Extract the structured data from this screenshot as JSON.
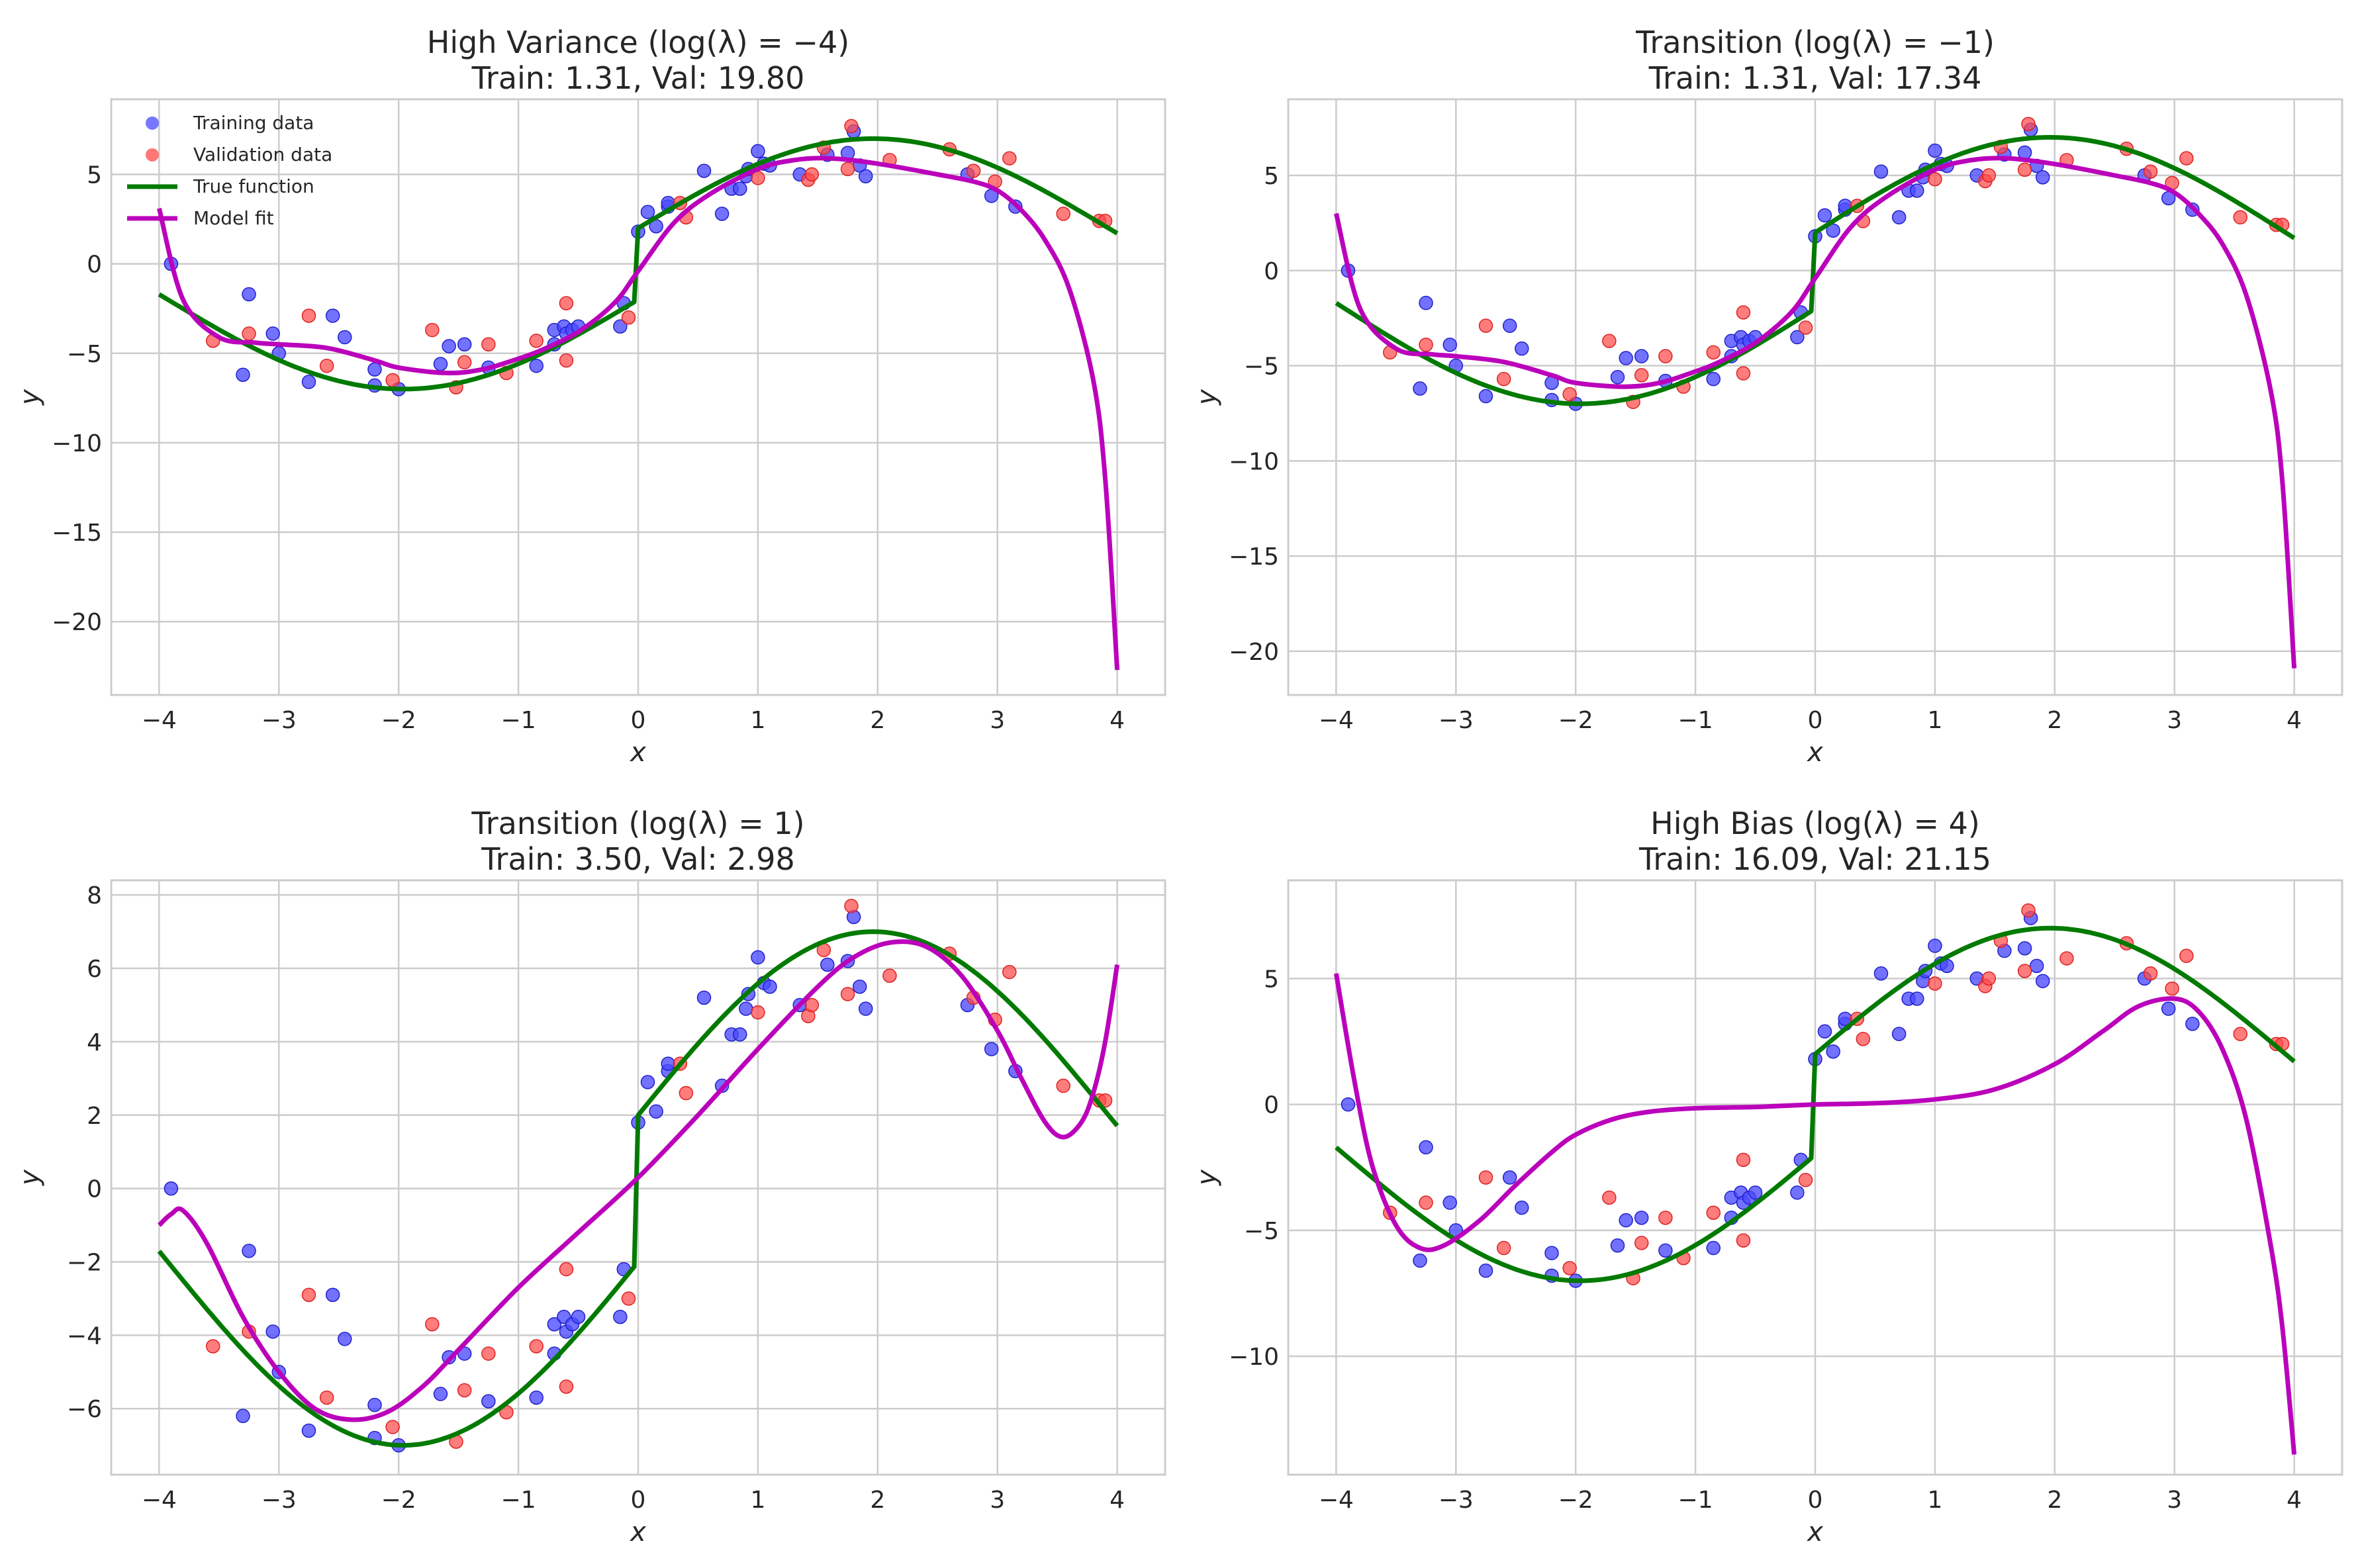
{
  "colors": {
    "training": "#4a4aff",
    "validation": "#ff4a4a",
    "true_fn": "#007a00",
    "model_fit": "#bb00bb",
    "grid": "#cccccc",
    "frame": "#cccccc"
  },
  "legend": {
    "placement": "upper-left of first panel",
    "items": [
      {
        "label": "Training data",
        "kind": "scatter",
        "color_key": "training"
      },
      {
        "label": "Validation data",
        "kind": "scatter",
        "color_key": "validation"
      },
      {
        "label": "True function",
        "kind": "line",
        "color_key": "true_fn"
      },
      {
        "label": "Model fit",
        "kind": "line",
        "color_key": "model_fit"
      }
    ]
  },
  "training_points": [
    [
      -3.9,
      0.0
    ],
    [
      -3.3,
      -6.2
    ],
    [
      -3.25,
      -1.7
    ],
    [
      -3.05,
      -3.9
    ],
    [
      -3.0,
      -5.0
    ],
    [
      -2.75,
      -6.6
    ],
    [
      -2.55,
      -2.9
    ],
    [
      -2.45,
      -4.1
    ],
    [
      -2.2,
      -5.9
    ],
    [
      -2.2,
      -6.8
    ],
    [
      -2.0,
      -7.0
    ],
    [
      -1.65,
      -5.6
    ],
    [
      -1.58,
      -4.6
    ],
    [
      -1.45,
      -4.5
    ],
    [
      -1.25,
      -5.8
    ],
    [
      -0.85,
      -5.7
    ],
    [
      -0.7,
      -4.5
    ],
    [
      -0.7,
      -3.7
    ],
    [
      -0.62,
      -3.5
    ],
    [
      -0.6,
      -3.9
    ],
    [
      -0.55,
      -3.7
    ],
    [
      -0.5,
      -3.5
    ],
    [
      -0.15,
      -3.5
    ],
    [
      -0.12,
      -2.2
    ],
    [
      0.0,
      1.8
    ],
    [
      0.08,
      2.9
    ],
    [
      0.15,
      2.1
    ],
    [
      0.25,
      3.2
    ],
    [
      0.25,
      3.4
    ],
    [
      0.55,
      5.2
    ],
    [
      0.7,
      2.8
    ],
    [
      0.78,
      4.2
    ],
    [
      0.85,
      4.2
    ],
    [
      0.9,
      4.9
    ],
    [
      0.92,
      5.3
    ],
    [
      1.0,
      6.3
    ],
    [
      1.05,
      5.6
    ],
    [
      1.1,
      5.5
    ],
    [
      1.35,
      5.0
    ],
    [
      1.58,
      6.1
    ],
    [
      1.75,
      6.2
    ],
    [
      1.8,
      7.4
    ],
    [
      1.85,
      5.5
    ],
    [
      1.9,
      4.9
    ],
    [
      2.75,
      5.0
    ],
    [
      2.95,
      3.8
    ],
    [
      3.15,
      3.2
    ]
  ],
  "validation_points": [
    [
      -3.55,
      -4.3
    ],
    [
      -3.25,
      -3.9
    ],
    [
      -2.75,
      -2.9
    ],
    [
      -2.6,
      -5.7
    ],
    [
      -2.05,
      -6.5
    ],
    [
      -1.72,
      -3.7
    ],
    [
      -1.52,
      -6.9
    ],
    [
      -1.45,
      -5.5
    ],
    [
      -1.25,
      -4.5
    ],
    [
      -1.1,
      -6.1
    ],
    [
      -0.85,
      -4.3
    ],
    [
      -0.6,
      -5.4
    ],
    [
      -0.6,
      -2.2
    ],
    [
      -0.08,
      -3.0
    ],
    [
      0.35,
      3.4
    ],
    [
      0.4,
      2.6
    ],
    [
      1.0,
      4.8
    ],
    [
      1.42,
      4.7
    ],
    [
      1.45,
      5.0
    ],
    [
      1.55,
      6.5
    ],
    [
      1.75,
      5.3
    ],
    [
      1.78,
      7.7
    ],
    [
      2.1,
      5.8
    ],
    [
      2.6,
      6.4
    ],
    [
      2.8,
      5.2
    ],
    [
      2.98,
      4.6
    ],
    [
      3.1,
      5.9
    ],
    [
      3.55,
      2.8
    ],
    [
      3.85,
      2.4
    ],
    [
      3.9,
      2.4
    ]
  ],
  "panels": [
    {
      "title": "High Variance ($\\log(\\lambda) = -4$)",
      "title_display": "High Variance (log(λ) = −4)",
      "subtitle": "Train: 1.31, Val: 19.80",
      "xlabel": "x",
      "ylabel": "y",
      "xlim": [
        -4.4,
        4.4
      ],
      "ylim": [
        -24.1,
        9.2
      ],
      "xticks": [
        -4,
        -3,
        -2,
        -1,
        0,
        1,
        2,
        3,
        4
      ],
      "yticks": [
        -20,
        -15,
        -10,
        -5,
        0,
        5
      ],
      "xtick_labels": [
        "−4",
        "−3",
        "−2",
        "−1",
        "0",
        "1",
        "2",
        "3",
        "4"
      ],
      "ytick_labels": [
        "−20",
        "−15",
        "−10",
        "−5",
        "0",
        "5"
      ],
      "show_legend": true,
      "model_fit": [
        [
          -4.0,
          3.1
        ],
        [
          -3.8,
          -2.0
        ],
        [
          -3.5,
          -4.1
        ],
        [
          -3.2,
          -4.4
        ],
        [
          -3.0,
          -4.5
        ],
        [
          -2.6,
          -4.7
        ],
        [
          -2.2,
          -5.4
        ],
        [
          -2.0,
          -5.8
        ],
        [
          -1.6,
          -6.1
        ],
        [
          -1.3,
          -5.9
        ],
        [
          -1.0,
          -5.3
        ],
        [
          -0.8,
          -4.8
        ],
        [
          -0.5,
          -3.8
        ],
        [
          -0.2,
          -2.2
        ],
        [
          0.0,
          -0.4
        ],
        [
          0.3,
          2.3
        ],
        [
          0.6,
          3.9
        ],
        [
          1.0,
          5.3
        ],
        [
          1.3,
          5.8
        ],
        [
          1.6,
          5.9
        ],
        [
          2.0,
          5.6
        ],
        [
          2.5,
          5.0
        ],
        [
          2.8,
          4.6
        ],
        [
          3.0,
          4.1
        ],
        [
          3.2,
          3.0
        ],
        [
          3.4,
          1.3
        ],
        [
          3.6,
          -1.4
        ],
        [
          3.8,
          -6.5
        ],
        [
          3.9,
          -12.0
        ],
        [
          4.0,
          -22.7
        ]
      ]
    },
    {
      "title": "Transition ($\\log(\\lambda) = -1$)",
      "title_display": "Transition (log(λ) = −1)",
      "subtitle": "Train: 1.31, Val: 17.34",
      "xlabel": "x",
      "ylabel": "y",
      "xlim": [
        -4.4,
        4.4
      ],
      "ylim": [
        -22.3,
        9.0
      ],
      "xticks": [
        -4,
        -3,
        -2,
        -1,
        0,
        1,
        2,
        3,
        4
      ],
      "yticks": [
        -20,
        -15,
        -10,
        -5,
        0,
        5
      ],
      "xtick_labels": [
        "−4",
        "−3",
        "−2",
        "−1",
        "0",
        "1",
        "2",
        "3",
        "4"
      ],
      "ytick_labels": [
        "−20",
        "−15",
        "−10",
        "−5",
        "0",
        "5"
      ],
      "show_legend": false,
      "model_fit": [
        [
          -4.0,
          3.0
        ],
        [
          -3.8,
          -2.0
        ],
        [
          -3.5,
          -4.1
        ],
        [
          -3.2,
          -4.4
        ],
        [
          -3.0,
          -4.5
        ],
        [
          -2.6,
          -4.8
        ],
        [
          -2.2,
          -5.5
        ],
        [
          -2.0,
          -5.9
        ],
        [
          -1.6,
          -6.1
        ],
        [
          -1.3,
          -5.9
        ],
        [
          -1.0,
          -5.3
        ],
        [
          -0.8,
          -4.8
        ],
        [
          -0.5,
          -3.8
        ],
        [
          -0.2,
          -2.2
        ],
        [
          0.0,
          -0.4
        ],
        [
          0.3,
          2.3
        ],
        [
          0.6,
          3.9
        ],
        [
          1.0,
          5.3
        ],
        [
          1.3,
          5.8
        ],
        [
          1.6,
          5.9
        ],
        [
          2.0,
          5.6
        ],
        [
          2.5,
          5.0
        ],
        [
          2.8,
          4.6
        ],
        [
          3.0,
          4.1
        ],
        [
          3.2,
          3.0
        ],
        [
          3.4,
          1.4
        ],
        [
          3.6,
          -1.3
        ],
        [
          3.8,
          -6.2
        ],
        [
          3.9,
          -11.0
        ],
        [
          4.0,
          -20.9
        ]
      ]
    },
    {
      "title": "Transition ($\\log(\\lambda) = 1$)",
      "title_display": "Transition (log(λ) = 1)",
      "subtitle": "Train: 3.50, Val: 2.98",
      "xlabel": "x",
      "ylabel": "y",
      "xlim": [
        -4.4,
        4.4
      ],
      "ylim": [
        -7.8,
        8.4
      ],
      "xticks": [
        -4,
        -3,
        -2,
        -1,
        0,
        1,
        2,
        3,
        4
      ],
      "yticks": [
        -6,
        -4,
        -2,
        0,
        2,
        4,
        6,
        8
      ],
      "xtick_labels": [
        "−4",
        "−3",
        "−2",
        "−1",
        "0",
        "1",
        "2",
        "3",
        "4"
      ],
      "ytick_labels": [
        "−6",
        "−4",
        "−2",
        "0",
        "2",
        "4",
        "6",
        "8"
      ],
      "show_legend": false,
      "model_fit": [
        [
          -4.0,
          -1.0
        ],
        [
          -3.9,
          -0.7
        ],
        [
          -3.8,
          -0.6
        ],
        [
          -3.6,
          -1.5
        ],
        [
          -3.3,
          -3.5
        ],
        [
          -3.0,
          -5.0
        ],
        [
          -2.7,
          -6.0
        ],
        [
          -2.4,
          -6.3
        ],
        [
          -2.1,
          -6.1
        ],
        [
          -1.8,
          -5.4
        ],
        [
          -1.5,
          -4.4
        ],
        [
          -1.0,
          -2.7
        ],
        [
          -0.5,
          -1.2
        ],
        [
          0.0,
          0.3
        ],
        [
          0.5,
          2.0
        ],
        [
          1.0,
          3.8
        ],
        [
          1.5,
          5.5
        ],
        [
          1.8,
          6.3
        ],
        [
          2.1,
          6.7
        ],
        [
          2.4,
          6.6
        ],
        [
          2.7,
          5.8
        ],
        [
          3.0,
          4.3
        ],
        [
          3.2,
          3.0
        ],
        [
          3.4,
          1.8
        ],
        [
          3.55,
          1.4
        ],
        [
          3.7,
          1.8
        ],
        [
          3.8,
          2.6
        ],
        [
          3.9,
          4.0
        ],
        [
          4.0,
          6.1
        ]
      ]
    },
    {
      "title": "High Bias ($\\log(\\lambda) = 4$)",
      "title_display": "High Bias (log(λ) = 4)",
      "subtitle": "Train: 16.09, Val: 21.15",
      "xlabel": "x",
      "ylabel": "y",
      "xlim": [
        -4.4,
        4.4
      ],
      "ylim": [
        -14.7,
        8.9
      ],
      "xticks": [
        -4,
        -3,
        -2,
        -1,
        0,
        1,
        2,
        3,
        4
      ],
      "yticks": [
        -10,
        -5,
        0,
        5
      ],
      "xtick_labels": [
        "−4",
        "−3",
        "−2",
        "−1",
        "0",
        "1",
        "2",
        "3",
        "4"
      ],
      "ytick_labels": [
        "−10",
        "−5",
        "0",
        "5"
      ],
      "show_legend": false,
      "model_fit": [
        [
          -4.0,
          5.2
        ],
        [
          -3.85,
          1.0
        ],
        [
          -3.7,
          -2.4
        ],
        [
          -3.5,
          -4.8
        ],
        [
          -3.3,
          -5.7
        ],
        [
          -3.1,
          -5.6
        ],
        [
          -2.8,
          -4.6
        ],
        [
          -2.5,
          -3.2
        ],
        [
          -2.2,
          -1.9
        ],
        [
          -2.0,
          -1.2
        ],
        [
          -1.7,
          -0.6
        ],
        [
          -1.4,
          -0.3
        ],
        [
          -1.0,
          -0.15
        ],
        [
          -0.5,
          -0.1
        ],
        [
          0.0,
          0.0
        ],
        [
          0.5,
          0.05
        ],
        [
          1.0,
          0.2
        ],
        [
          1.5,
          0.6
        ],
        [
          2.0,
          1.6
        ],
        [
          2.4,
          2.9
        ],
        [
          2.7,
          3.9
        ],
        [
          3.0,
          4.2
        ],
        [
          3.2,
          3.7
        ],
        [
          3.4,
          2.2
        ],
        [
          3.6,
          -0.6
        ],
        [
          3.8,
          -5.5
        ],
        [
          3.9,
          -8.8
        ],
        [
          4.0,
          -13.9
        ]
      ]
    }
  ]
}
